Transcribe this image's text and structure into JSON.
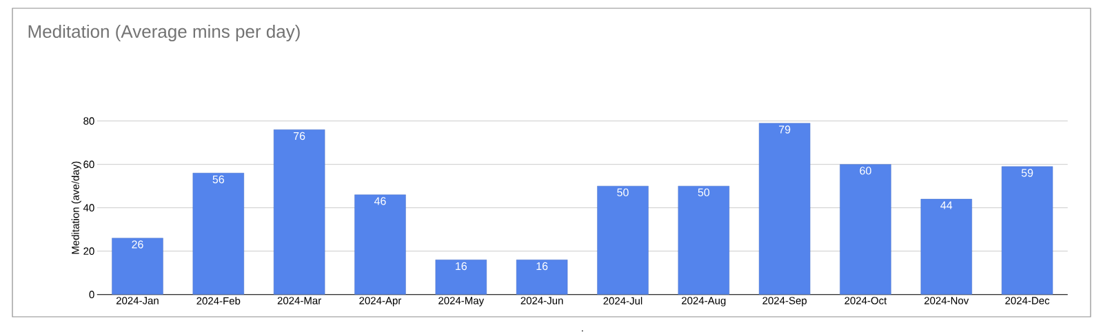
{
  "chart_data": {
    "type": "bar",
    "title": "Meditation (Average mins per day)",
    "xlabel": ".",
    "ylabel": "Meditation (ave/day)",
    "categories": [
      "2024-Jan",
      "2024-Feb",
      "2024-Mar",
      "2024-Apr",
      "2024-May",
      "2024-Jun",
      "2024-Jul",
      "2024-Aug",
      "2024-Sep",
      "2024-Oct",
      "2024-Nov",
      "2024-Dec"
    ],
    "values": [
      26,
      56,
      76,
      46,
      16,
      16,
      50,
      50,
      79,
      60,
      44,
      59
    ],
    "color": "#5484ec",
    "ylim": [
      0,
      80
    ],
    "yticks": [
      0,
      20,
      40,
      60,
      80
    ],
    "grid": "y",
    "data_labels": true
  }
}
